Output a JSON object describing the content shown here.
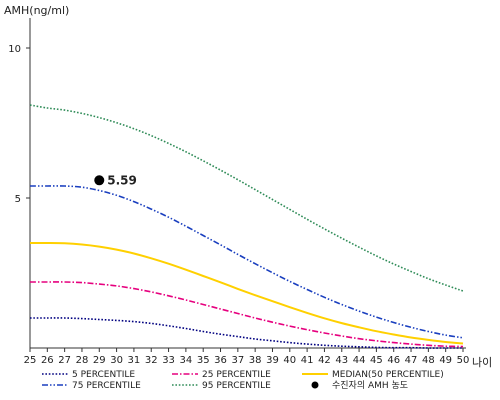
{
  "chart_data": {
    "type": "line",
    "ylabel": "AMH(ng/ml)",
    "xlabel": "나이",
    "xlim": [
      25,
      50
    ],
    "ylim": [
      0,
      11
    ],
    "x_ticks": [
      25,
      26,
      27,
      28,
      29,
      30,
      31,
      32,
      33,
      34,
      35,
      36,
      37,
      38,
      39,
      40,
      41,
      42,
      43,
      44,
      45,
      46,
      47,
      48,
      49,
      50
    ],
    "y_ticks": [
      5,
      10
    ],
    "x": [
      25,
      26,
      27,
      28,
      29,
      30,
      31,
      32,
      33,
      34,
      35,
      36,
      37,
      38,
      39,
      40,
      41,
      42,
      43,
      44,
      45,
      46,
      47,
      48,
      49,
      50
    ],
    "series": [
      {
        "name": "5 PERCENTILE",
        "color": "#000080",
        "dash": "dotted",
        "values": [
          1.0,
          1.0,
          1.0,
          0.98,
          0.95,
          0.92,
          0.88,
          0.82,
          0.74,
          0.65,
          0.55,
          0.46,
          0.38,
          0.3,
          0.24,
          0.18,
          0.13,
          0.09,
          0.06,
          0.04,
          0.02,
          0.01,
          0.01,
          0.0,
          0.0,
          0.0
        ]
      },
      {
        "name": "25 PERCENTILE",
        "color": "#e6007e",
        "dash": "dashdot",
        "values": [
          2.2,
          2.2,
          2.2,
          2.18,
          2.13,
          2.07,
          1.98,
          1.87,
          1.74,
          1.6,
          1.45,
          1.3,
          1.15,
          1.0,
          0.86,
          0.73,
          0.61,
          0.5,
          0.4,
          0.31,
          0.24,
          0.18,
          0.13,
          0.09,
          0.06,
          0.05
        ]
      },
      {
        "name": "MEDIAN(50 PERCENTILE)",
        "color": "#ffd000",
        "dash": "solid",
        "values": [
          3.5,
          3.5,
          3.49,
          3.45,
          3.38,
          3.28,
          3.15,
          2.99,
          2.81,
          2.61,
          2.4,
          2.19,
          1.97,
          1.76,
          1.56,
          1.36,
          1.17,
          0.99,
          0.83,
          0.69,
          0.56,
          0.45,
          0.35,
          0.27,
          0.2,
          0.15
        ]
      },
      {
        "name": "75 PERCENTILE",
        "color": "#1a3fbf",
        "dash": "dashdotdot",
        "values": [
          5.4,
          5.4,
          5.4,
          5.36,
          5.25,
          5.09,
          4.88,
          4.63,
          4.36,
          4.06,
          3.75,
          3.44,
          3.12,
          2.81,
          2.51,
          2.22,
          1.95,
          1.69,
          1.45,
          1.23,
          1.03,
          0.85,
          0.69,
          0.55,
          0.43,
          0.34
        ]
      },
      {
        "name": "95 PERCENTILE",
        "color": "#2e8b57",
        "dash": "dotted",
        "values": [
          8.1,
          8.0,
          7.93,
          7.82,
          7.68,
          7.51,
          7.31,
          7.08,
          6.82,
          6.54,
          6.24,
          5.93,
          5.61,
          5.28,
          4.95,
          4.62,
          4.29,
          3.97,
          3.66,
          3.36,
          3.07,
          2.8,
          2.55,
          2.31,
          2.1,
          1.9
        ]
      }
    ],
    "point": {
      "name": "수진자의 AMH 농도",
      "x": 29,
      "y": 5.59,
      "label": "5.59",
      "color": "#000000"
    },
    "legend": {
      "placement": "bottom",
      "point_label": "수진자의 AMH 농도"
    },
    "grid": false
  }
}
